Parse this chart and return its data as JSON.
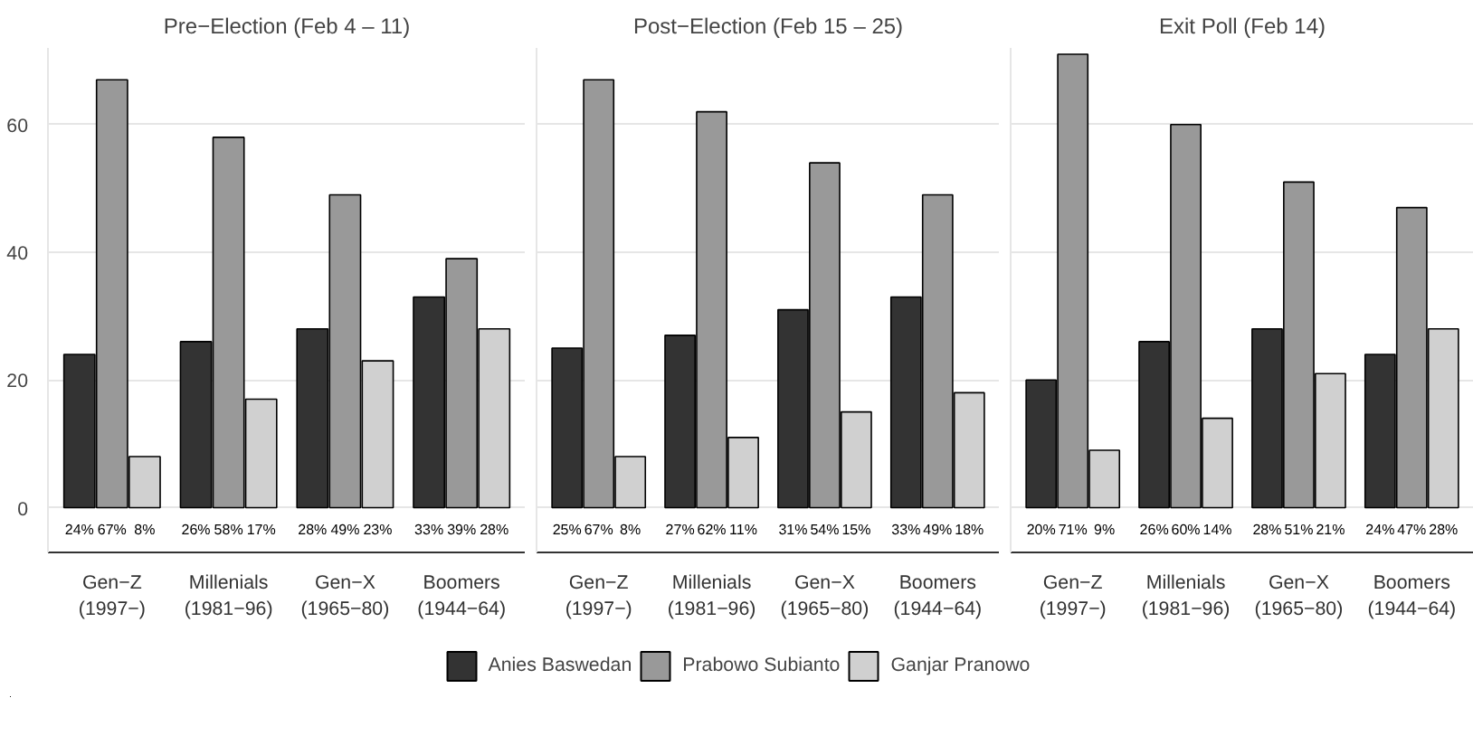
{
  "chart_data": [
    {
      "type": "bar",
      "title": "Pre−Election (Feb 4 – 11)",
      "categories": [
        "Gen−Z\n(1997−)",
        "Millenials\n(1981−96)",
        "Gen−X\n(1965−80)",
        "Boomers\n(1944−64)"
      ],
      "series": [
        {
          "name": "Anies Baswedan",
          "color": "#333333",
          "values": [
            24,
            26,
            28,
            33
          ],
          "value_labels": [
            "24%",
            "26%",
            "28%",
            "33%"
          ]
        },
        {
          "name": "Prabowo Subianto",
          "color": "#999999",
          "values": [
            67,
            58,
            49,
            39
          ],
          "value_labels": [
            "67%",
            "58%",
            "49%",
            "39%"
          ]
        },
        {
          "name": "Ganjar Pranowo",
          "color": "#d0d0d0",
          "values": [
            8,
            17,
            23,
            28
          ],
          "value_labels": [
            "8%",
            "17%",
            "23%",
            "28%"
          ]
        }
      ],
      "ylim": [
        -7,
        72
      ],
      "yticks": [
        0,
        20,
        40,
        60
      ],
      "grid": "y",
      "legend": "bottom"
    },
    {
      "type": "bar",
      "title": "Post−Election (Feb 15 – 25)",
      "categories": [
        "Gen−Z\n(1997−)",
        "Millenials\n(1981−96)",
        "Gen−X\n(1965−80)",
        "Boomers\n(1944−64)"
      ],
      "series": [
        {
          "color": "#333333",
          "values": [
            25,
            27,
            31,
            33
          ],
          "value_labels": [
            "25%",
            "27%",
            "31%",
            "33%"
          ]
        },
        {
          "color": "#999999",
          "values": [
            67,
            62,
            54,
            49
          ],
          "value_labels": [
            "67%",
            "62%",
            "54%",
            "49%"
          ]
        },
        {
          "color": "#d0d0d0",
          "values": [
            8,
            11,
            15,
            18
          ],
          "value_labels": [
            "8%",
            "11%",
            "15%",
            "18%"
          ]
        }
      ],
      "ylim": [
        -7,
        72
      ],
      "yticks": [
        0,
        20,
        40,
        60
      ],
      "grid": "y",
      "tick_labels": "x"
    },
    {
      "type": "bar",
      "title": "Exit Poll (Feb 14)",
      "categories": [
        "Gen−Z\n(1997−)",
        "Millenials\n(1981−96)",
        "Gen−X\n(1965−80)",
        "Boomers\n(1944−64)"
      ],
      "series": [
        {
          "color": "#333333",
          "values": [
            20,
            26,
            28,
            24
          ],
          "value_labels": [
            "20%",
            "26%",
            "28%",
            "24%"
          ]
        },
        {
          "color": "#999999",
          "values": [
            71,
            60,
            51,
            47
          ],
          "value_labels": [
            "71%",
            "60%",
            "51%",
            "47%"
          ]
        },
        {
          "color": "#d0d0d0",
          "values": [
            9,
            14,
            21,
            28
          ],
          "value_labels": [
            "9%",
            "14%",
            "21%",
            "28%"
          ]
        }
      ],
      "ylim": [
        -7,
        72
      ],
      "yticks": [
        0,
        20,
        40,
        60
      ],
      "grid": "y",
      "tick_labels": "x"
    }
  ]
}
